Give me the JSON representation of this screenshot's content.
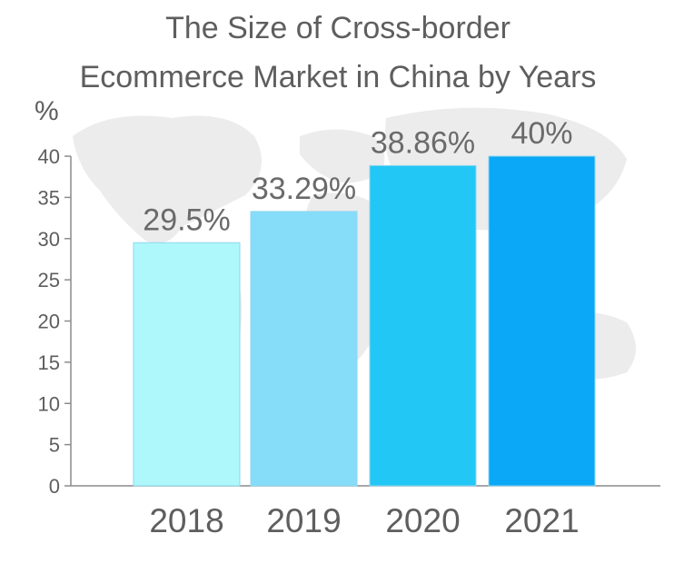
{
  "chart_data": {
    "type": "bar",
    "title_lines": [
      "The Size of Cross-border",
      "Ecommerce Market in China by Years"
    ],
    "ylabel": "%",
    "xlabel": "",
    "categories": [
      "2018",
      "2019",
      "2020",
      "2021"
    ],
    "values": [
      29.5,
      33.29,
      38.86,
      40
    ],
    "data_labels": [
      "29.5%",
      "33.29%",
      "38.86%",
      "40%"
    ],
    "ylim": [
      0,
      40
    ],
    "yticks": [
      0,
      5,
      10,
      15,
      20,
      25,
      30,
      35,
      40
    ],
    "bar_colors": [
      "#aef8fb",
      "#86ddfa",
      "#23c7f5",
      "#0aa8f6"
    ],
    "grid": false,
    "legend": "none"
  }
}
